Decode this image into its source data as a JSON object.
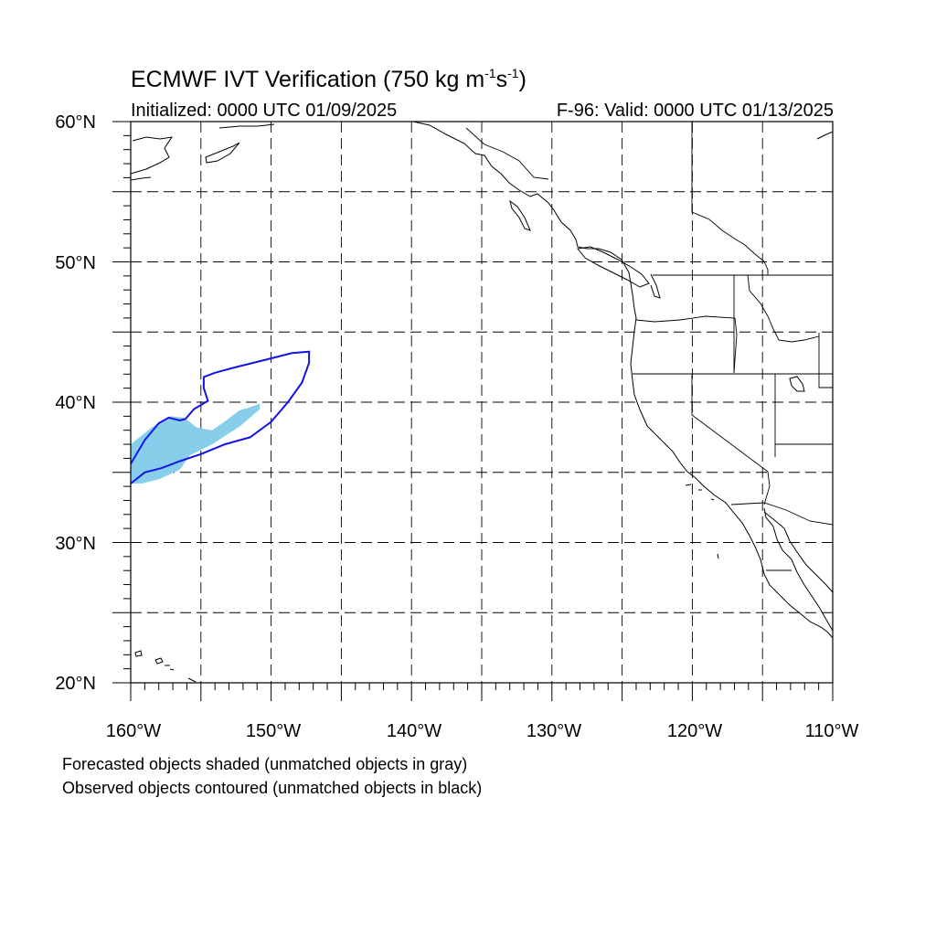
{
  "title": {
    "prefix": "ECMWF IVT Verification (750 kg m",
    "sup1": "-1",
    "mid": "s",
    "sup2": "-1",
    "suffix": ")"
  },
  "initialized": "Initialized: 0000 UTC 01/09/2025",
  "valid": "F-96: Valid: 0000 UTC 01/13/2025",
  "lat_labels": [
    "60°N",
    "50°N",
    "40°N",
    "30°N",
    "20°N"
  ],
  "lon_labels": [
    "160°W",
    "150°W",
    "140°W",
    "130°W",
    "120°W",
    "110°W"
  ],
  "footnotes": {
    "line1": "Forecasted objects shaded (unmatched objects in gray)",
    "line2": "Observed objects contoured (unmatched objects in black)"
  },
  "colors": {
    "forecast_fill": "#87ceeb",
    "observed_contour": "#1414e6",
    "coastline": "#000000",
    "grid": "#000000"
  },
  "chart_data": {
    "type": "map",
    "projection": "cylindrical equidistant",
    "lon_range": [
      -160,
      -110
    ],
    "lat_range": [
      20,
      60
    ],
    "grid_lines": "dashed every 5 degrees",
    "forecast_object": {
      "style": "shaded",
      "color": "#87ceeb",
      "outline": [
        [
          -160,
          37.0
        ],
        [
          -158.5,
          38.2
        ],
        [
          -157.2,
          39.0
        ],
        [
          -156.2,
          38.9
        ],
        [
          -155.3,
          38.2
        ],
        [
          -154.2,
          38.0
        ],
        [
          -153.2,
          38.7
        ],
        [
          -152.3,
          39.4
        ],
        [
          -151.6,
          39.6
        ],
        [
          -150.8,
          39.9
        ],
        [
          -150.8,
          39.5
        ],
        [
          -152.2,
          38.3
        ],
        [
          -154.2,
          37.0
        ],
        [
          -155.8,
          36.2
        ],
        [
          -156.5,
          35.2
        ],
        [
          -158.0,
          34.5
        ],
        [
          -159.2,
          34.2
        ],
        [
          -160,
          34.2
        ]
      ]
    },
    "observed_object": {
      "style": "contour",
      "color": "#1414e6",
      "outline": [
        [
          -160,
          34.2
        ],
        [
          -159.0,
          35.0
        ],
        [
          -157.8,
          35.3
        ],
        [
          -156.5,
          35.8
        ],
        [
          -155.0,
          36.3
        ],
        [
          -153.3,
          37.0
        ],
        [
          -151.5,
          37.5
        ],
        [
          -150.0,
          38.6
        ],
        [
          -148.8,
          40.0
        ],
        [
          -147.8,
          41.4
        ],
        [
          -147.3,
          42.8
        ],
        [
          -147.3,
          43.6
        ],
        [
          -148.5,
          43.5
        ],
        [
          -150.5,
          43.0
        ],
        [
          -152.5,
          42.5
        ],
        [
          -154.0,
          42.1
        ],
        [
          -154.8,
          41.8
        ],
        [
          -154.8,
          41.0
        ],
        [
          -154.5,
          40.1
        ],
        [
          -155.5,
          39.5
        ],
        [
          -156.1,
          38.8
        ],
        [
          -156.5,
          38.7
        ],
        [
          -157.3,
          38.9
        ],
        [
          -158.0,
          38.5
        ],
        [
          -159.0,
          37.3
        ],
        [
          -160,
          35.6
        ]
      ]
    }
  }
}
